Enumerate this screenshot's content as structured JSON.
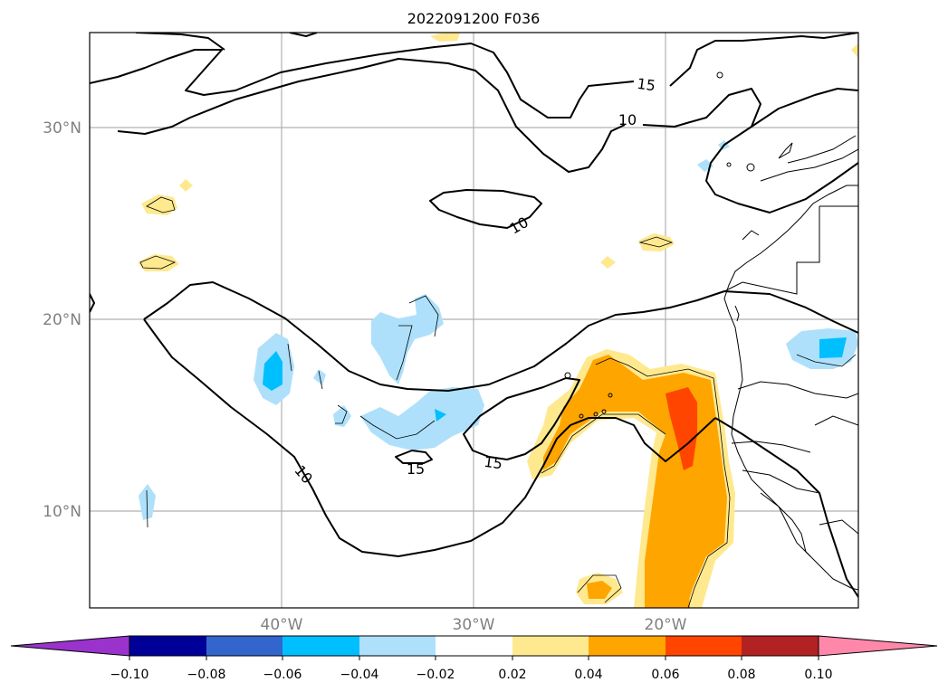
{
  "title": "2022091200 F036",
  "map": {
    "lat_labels": [
      "30°N",
      "20°N",
      "10°N"
    ],
    "lon_labels": [
      "40°W",
      "30°W",
      "20°W"
    ],
    "contour_labels": [
      "15",
      "10",
      "10",
      "15",
      "15",
      "10"
    ]
  },
  "colorbar": {
    "ticks": [
      "−0.10",
      "−0.08",
      "−0.06",
      "−0.04",
      "−0.02",
      "0.02",
      "0.04",
      "0.06",
      "0.08",
      "0.10"
    ],
    "colors": {
      "below": "#9933cc",
      "n010_n008": "#000099",
      "n008_n006": "#3366cc",
      "n006_n004": "#00bfff",
      "n004_n002": "#aee0fb",
      "n002_p002": "#ffffff",
      "p002_p004": "#ffe98f",
      "p004_p006": "#ffa500",
      "p006_p008": "#ff4500",
      "p008_p010": "#b22222",
      "above": "#ff88aa"
    }
  }
}
